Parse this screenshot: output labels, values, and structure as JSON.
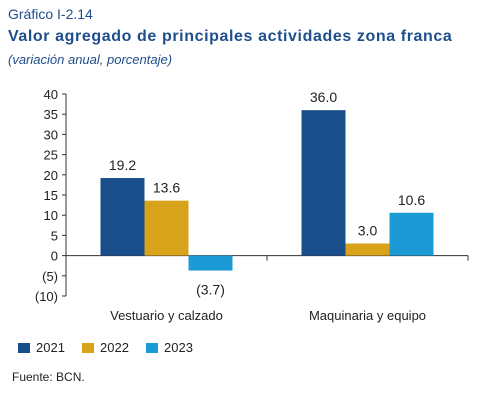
{
  "figure_label": "Gráfico I-2.14",
  "title": "Valor agregado de principales actividades zona franca",
  "subtitle": "(variación anual, porcentaje)",
  "source": "Fuente: BCN.",
  "chart_data": {
    "type": "bar",
    "categories": [
      "Vestuario y calzado",
      "Maquinaria y equipo"
    ],
    "series": [
      {
        "name": "2021",
        "color": "#1a4e8a",
        "values": [
          19.2,
          36.0
        ]
      },
      {
        "name": "2022",
        "color": "#d9a21b",
        "values": [
          13.6,
          3.0
        ]
      },
      {
        "name": "2023",
        "color": "#1c9ad6",
        "values": [
          -3.7,
          10.6
        ]
      }
    ],
    "data_labels": [
      [
        "19.2",
        "36.0"
      ],
      [
        "13.6",
        "3.0"
      ],
      [
        "(3.7)",
        "10.6"
      ]
    ],
    "yticks": [
      40,
      35,
      30,
      25,
      20,
      15,
      10,
      5,
      0,
      -5,
      -10
    ],
    "ytick_labels": [
      "40",
      "35",
      "30",
      "25",
      "20",
      "15",
      "10",
      "5",
      "0",
      "(5)",
      "(10)"
    ],
    "ylim": [
      -10,
      40
    ],
    "grid": false,
    "legend_position": "bottom-left"
  }
}
